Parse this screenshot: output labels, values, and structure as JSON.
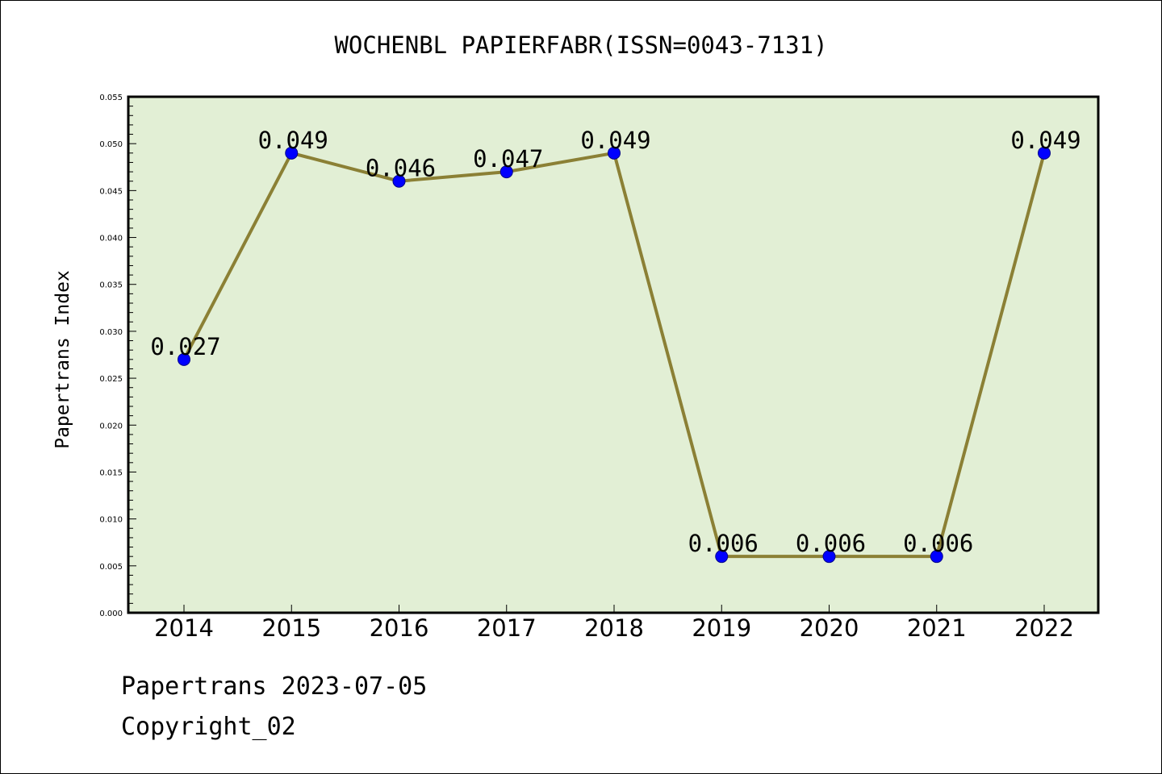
{
  "chart_data": {
    "type": "line",
    "title": "WOCHENBL PAPIERFABR(ISSN=0043-7131)",
    "xlabel": "",
    "ylabel": "Papertrans Index",
    "categories": [
      "2014",
      "2015",
      "2016",
      "2017",
      "2018",
      "2019",
      "2020",
      "2021",
      "2022"
    ],
    "series": [
      {
        "values": [
          0.027,
          0.049,
          0.046,
          0.047,
          0.049,
          0.006,
          0.006,
          0.006,
          0.049
        ],
        "data_labels": [
          "0.027",
          "0.049",
          "0.046",
          "0.047",
          "0.049",
          "0.006",
          "0.006",
          "0.006",
          "0.049"
        ]
      }
    ],
    "ylim": [
      0,
      0.055
    ],
    "yticks": [
      "0.000",
      "0.005",
      "0.010",
      "0.015",
      "0.020",
      "0.025",
      "0.030",
      "0.035",
      "0.040",
      "0.045",
      "0.050",
      "0.055"
    ],
    "grid": false,
    "legend": "none",
    "colors": {
      "plot_background": "#e2efd5",
      "line": "#8b8035",
      "marker": "#0000ff",
      "marker_edge": "#00008b"
    }
  },
  "footer": {
    "line1": "Papertrans 2023-07-05",
    "line2": "Copyright_02"
  }
}
